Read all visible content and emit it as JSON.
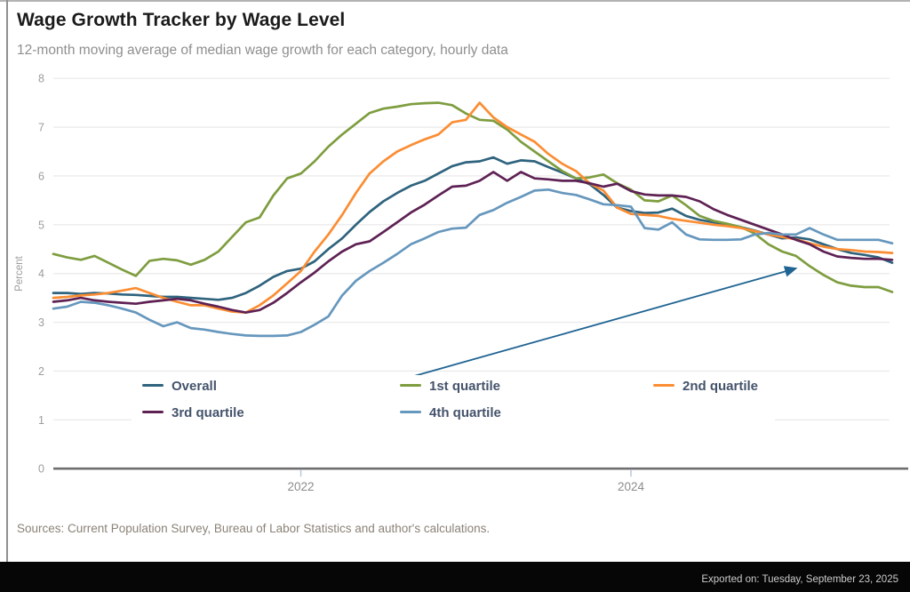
{
  "header": {
    "title": "Wage Growth Tracker by Wage Level",
    "subtitle": "12-month moving average of median wage growth for each category, hourly data"
  },
  "footer": {
    "sources": "Sources: Current Population Survey, Bureau of Labor Statistics and author's calculations.",
    "exported": "Exported on: Tuesday, September 23, 2025"
  },
  "colors": {
    "grid": "#ececec",
    "zero_axis": "#6f6f6f",
    "y_tick_label": "#9c9c9c",
    "x_tick_label": "#8c8c8c",
    "x_tick_mark": "#b9c9d6",
    "annotation_arrow": "#1f6492",
    "legend_text": "#44536b",
    "footer_background": "#060606"
  },
  "chart_data": {
    "type": "line",
    "title": "Wage Growth Tracker by Wage Level",
    "subtitle": "12-month moving average of median wage growth for each category, hourly data",
    "xlabel": "",
    "ylabel": "Percent",
    "ylim": [
      0,
      8
    ],
    "yticks": [
      0,
      1,
      2,
      3,
      4,
      5,
      6,
      7,
      8
    ],
    "grid": "horizontal",
    "legend_position": "inside-bottom-left, two rows",
    "x_start": "2020-07",
    "x_end": "2025-08",
    "frequency": "monthly",
    "n_points": 62,
    "xticks": [
      {
        "label": "2022",
        "month_index": 18
      },
      {
        "label": "2024",
        "month_index": 42
      }
    ],
    "series": [
      {
        "name": "Overall",
        "color": "#2f637e",
        "values": [
          3.6,
          3.6,
          3.58,
          3.6,
          3.59,
          3.57,
          3.56,
          3.54,
          3.52,
          3.52,
          3.5,
          3.48,
          3.46,
          3.5,
          3.6,
          3.75,
          3.93,
          4.05,
          4.1,
          4.25,
          4.5,
          4.72,
          5.0,
          5.26,
          5.48,
          5.65,
          5.8,
          5.9,
          6.05,
          6.2,
          6.28,
          6.3,
          6.38,
          6.25,
          6.32,
          6.3,
          6.18,
          6.07,
          5.95,
          5.83,
          5.61,
          5.35,
          5.28,
          5.24,
          5.25,
          5.33,
          5.18,
          5.1,
          5.05,
          5.0,
          4.95,
          4.88,
          4.8,
          4.72,
          4.74,
          4.7,
          4.6,
          4.5,
          4.42,
          4.38,
          4.33,
          4.22
        ]
      },
      {
        "name": "1st quartile",
        "color": "#7e9d3f",
        "values": [
          4.4,
          4.33,
          4.28,
          4.36,
          4.22,
          4.08,
          3.95,
          4.26,
          4.3,
          4.27,
          4.18,
          4.28,
          4.45,
          4.75,
          5.05,
          5.15,
          5.6,
          5.95,
          6.05,
          6.3,
          6.6,
          6.85,
          7.07,
          7.29,
          7.38,
          7.42,
          7.47,
          7.49,
          7.5,
          7.45,
          7.28,
          7.15,
          7.13,
          6.95,
          6.7,
          6.5,
          6.3,
          6.1,
          5.95,
          5.97,
          6.03,
          5.85,
          5.72,
          5.5,
          5.48,
          5.6,
          5.4,
          5.18,
          5.08,
          5.02,
          4.95,
          4.82,
          4.6,
          4.45,
          4.36,
          4.15,
          3.97,
          3.82,
          3.75,
          3.72,
          3.72,
          3.62
        ]
      },
      {
        "name": "2nd quartile",
        "color": "#fb8d33",
        "values": [
          3.5,
          3.52,
          3.55,
          3.57,
          3.6,
          3.65,
          3.7,
          3.6,
          3.5,
          3.42,
          3.35,
          3.35,
          3.28,
          3.22,
          3.2,
          3.35,
          3.55,
          3.8,
          4.05,
          4.45,
          4.8,
          5.2,
          5.65,
          6.05,
          6.3,
          6.5,
          6.63,
          6.75,
          6.85,
          7.1,
          7.15,
          7.5,
          7.2,
          7.0,
          6.85,
          6.7,
          6.45,
          6.25,
          6.1,
          5.85,
          5.7,
          5.35,
          5.22,
          5.2,
          5.18,
          5.12,
          5.08,
          5.04,
          5.0,
          4.97,
          4.93,
          4.87,
          4.8,
          4.75,
          4.7,
          4.62,
          4.55,
          4.5,
          4.48,
          4.45,
          4.44,
          4.42
        ]
      },
      {
        "name": "3rd quartile",
        "color": "#5e2154",
        "values": [
          3.42,
          3.45,
          3.5,
          3.45,
          3.42,
          3.4,
          3.38,
          3.42,
          3.45,
          3.48,
          3.45,
          3.38,
          3.32,
          3.25,
          3.2,
          3.25,
          3.4,
          3.6,
          3.82,
          4.02,
          4.25,
          4.45,
          4.6,
          4.66,
          4.85,
          5.05,
          5.25,
          5.41,
          5.6,
          5.78,
          5.8,
          5.9,
          6.08,
          5.9,
          6.08,
          5.95,
          5.93,
          5.9,
          5.9,
          5.85,
          5.78,
          5.84,
          5.69,
          5.62,
          5.6,
          5.6,
          5.57,
          5.48,
          5.32,
          5.2,
          5.1,
          5.0,
          4.9,
          4.8,
          4.69,
          4.6,
          4.45,
          4.35,
          4.32,
          4.3,
          4.3,
          4.28
        ]
      },
      {
        "name": "4th quartile",
        "color": "#6697bd",
        "values": [
          3.28,
          3.32,
          3.42,
          3.4,
          3.35,
          3.28,
          3.2,
          3.05,
          2.92,
          3.0,
          2.88,
          2.85,
          2.8,
          2.76,
          2.73,
          2.72,
          2.72,
          2.73,
          2.8,
          2.95,
          3.12,
          3.55,
          3.85,
          4.05,
          4.22,
          4.4,
          4.6,
          4.72,
          4.85,
          4.92,
          4.94,
          5.2,
          5.3,
          5.45,
          5.57,
          5.7,
          5.72,
          5.65,
          5.61,
          5.52,
          5.42,
          5.4,
          5.37,
          4.93,
          4.9,
          5.05,
          4.8,
          4.7,
          4.69,
          4.69,
          4.7,
          4.8,
          4.83,
          4.8,
          4.8,
          4.93,
          4.8,
          4.69,
          4.69,
          4.69,
          4.69,
          4.62
        ]
      }
    ],
    "annotation_arrow": {
      "description": "arrow from the 1st quartile legend entry pointing to the 1st quartile line",
      "target_series": "1st quartile",
      "target_month_index": 54
    }
  }
}
